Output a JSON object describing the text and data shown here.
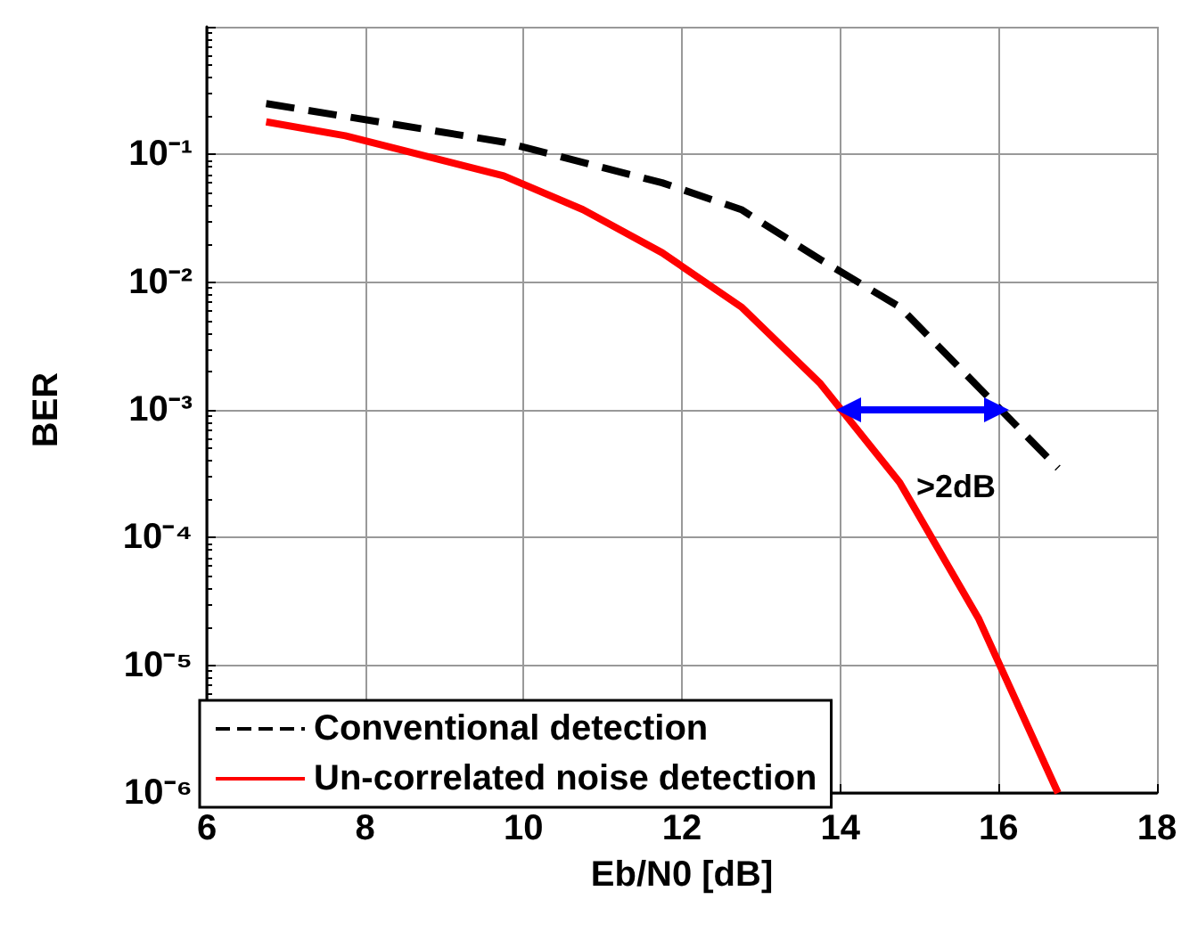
{
  "chart_data": {
    "type": "line",
    "xlabel": "Eb/N0 [dB]",
    "ylabel": "BER",
    "log": "y",
    "grid": true,
    "legend": "bottom left",
    "line_style": "solid",
    "marker": "none",
    "xlim": [
      6,
      18
    ],
    "xticks": [
      6,
      8,
      10,
      12,
      14,
      16,
      18
    ],
    "ylim": [
      1e-06,
      1
    ],
    "yticks": [
      {
        "value": 1e-06,
        "label": "10⁻⁶"
      },
      {
        "value": 1e-05,
        "label": "10⁻⁵"
      },
      {
        "value": 0.0001,
        "label": "10⁻⁴"
      },
      {
        "value": 0.001,
        "label": "10⁻³"
      },
      {
        "value": 0.01,
        "label": "10⁻²"
      },
      {
        "value": 0.1,
        "label": "10⁻¹"
      },
      {
        "value": 1,
        "label": null
      }
    ],
    "series": [
      {
        "name": "Conventional detection",
        "color": "#000000",
        "line_style": "dashed",
        "x": [
          6.75,
          9.75,
          11.75,
          12.75,
          13.75,
          14.75,
          16.75
        ],
        "values": [
          0.25,
          0.125,
          0.06,
          0.037,
          0.015,
          0.0064,
          0.00035
        ]
      },
      {
        "name": "Un-correlated noise detection",
        "color": "#ff0000",
        "x": [
          6.75,
          7.75,
          9.75,
          10.75,
          11.75,
          12.75,
          13.75,
          14.75,
          15.75,
          16.75
        ],
        "values": [
          0.18,
          0.14,
          0.068,
          0.037,
          0.017,
          0.0064,
          0.0016,
          0.00027,
          2.3e-05,
          1e-06
        ]
      }
    ],
    "annotations": [
      ">2dB"
    ]
  }
}
